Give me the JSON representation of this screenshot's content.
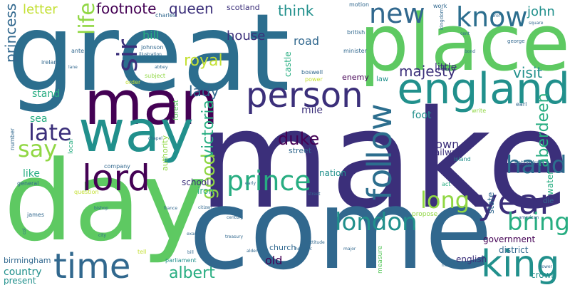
{
  "cloud": {
    "palette": {
      "dark_purple": "#440154",
      "indigo": "#3b2f7a",
      "blue": "#2c6e8e",
      "steel": "#31688e",
      "teal": "#21908c",
      "sea": "#27ad81",
      "green": "#5ec962",
      "light_green": "#90d743",
      "lime": "#c4e034",
      "yellow": "#fde725"
    },
    "words": [
      {
        "text": "great"
      },
      {
        "text": "make"
      },
      {
        "text": "come"
      },
      {
        "text": "day"
      },
      {
        "text": "place"
      },
      {
        "text": "man"
      },
      {
        "text": "way"
      },
      {
        "text": "england"
      },
      {
        "text": "person"
      },
      {
        "text": "lord"
      },
      {
        "text": "time"
      },
      {
        "text": "king"
      },
      {
        "text": "year"
      },
      {
        "text": "know"
      },
      {
        "text": "new"
      },
      {
        "text": "prince"
      },
      {
        "text": "london"
      },
      {
        "text": "follow"
      },
      {
        "text": "life"
      },
      {
        "text": "sir"
      },
      {
        "text": "late"
      },
      {
        "text": "say"
      },
      {
        "text": "hand"
      },
      {
        "text": "long"
      },
      {
        "text": "bring"
      },
      {
        "text": "good"
      },
      {
        "text": "duke"
      },
      {
        "text": "victoria"
      },
      {
        "text": "albert"
      },
      {
        "text": "aberdeen"
      },
      {
        "text": "royal"
      },
      {
        "text": "majesty"
      },
      {
        "text": "visit"
      },
      {
        "text": "lady"
      },
      {
        "text": "princess"
      },
      {
        "text": "footnote"
      },
      {
        "text": "queen"
      },
      {
        "text": "think"
      },
      {
        "text": "john"
      },
      {
        "text": "house"
      },
      {
        "text": "letter"
      },
      {
        "text": "hill"
      },
      {
        "text": "road"
      },
      {
        "text": "scotland"
      },
      {
        "text": "castle"
      },
      {
        "text": "little"
      },
      {
        "text": "town"
      },
      {
        "text": "country"
      },
      {
        "text": "old"
      },
      {
        "text": "church"
      },
      {
        "text": "foot"
      },
      {
        "text": "stand"
      },
      {
        "text": "sea"
      },
      {
        "text": "like"
      },
      {
        "text": "mile"
      },
      {
        "text": "enemy"
      },
      {
        "text": "state"
      },
      {
        "text": "water"
      },
      {
        "text": "government"
      },
      {
        "text": "english"
      },
      {
        "text": "birmingham"
      },
      {
        "text": "present"
      },
      {
        "text": "school"
      },
      {
        "text": "iron"
      },
      {
        "text": "railway"
      },
      {
        "text": "nation"
      },
      {
        "text": "district"
      },
      {
        "text": "crown"
      },
      {
        "text": "authority"
      },
      {
        "text": "company"
      },
      {
        "text": "street"
      },
      {
        "text": "parliament"
      },
      {
        "text": "forest"
      },
      {
        "text": "minister"
      },
      {
        "text": "british"
      },
      {
        "text": "ireland"
      },
      {
        "text": "law"
      },
      {
        "text": "power"
      },
      {
        "text": "order"
      },
      {
        "text": "subject"
      },
      {
        "text": "number"
      },
      {
        "text": "local"
      },
      {
        "text": "general"
      },
      {
        "text": "question"
      },
      {
        "text": "die"
      },
      {
        "text": "act"
      },
      {
        "text": "earl"
      },
      {
        "text": "island"
      },
      {
        "text": "propose"
      },
      {
        "text": "boswell"
      },
      {
        "text": "work"
      },
      {
        "text": "kingdom"
      },
      {
        "text": "motion"
      },
      {
        "text": "johnson"
      },
      {
        "text": "charles"
      },
      {
        "text": "james"
      },
      {
        "text": "write"
      },
      {
        "text": "tell"
      },
      {
        "text": "cathedral"
      },
      {
        "text": "measure"
      },
      {
        "text": "ante"
      },
      {
        "text": "illustration"
      },
      {
        "text": "abbey"
      },
      {
        "text": "chapel"
      },
      {
        "text": "george"
      },
      {
        "text": "alderman"
      },
      {
        "text": "france"
      },
      {
        "text": "bill"
      },
      {
        "text": "city"
      },
      {
        "text": "bishop"
      },
      {
        "text": "century"
      },
      {
        "text": "heraldic"
      },
      {
        "text": "marriage"
      },
      {
        "text": "american"
      },
      {
        "text": "street"
      },
      {
        "text": "tower"
      },
      {
        "text": "major"
      },
      {
        "text": "example"
      },
      {
        "text": "citizen"
      },
      {
        "text": "attitude"
      },
      {
        "text": "early"
      },
      {
        "text": "treasury"
      },
      {
        "text": "col"
      },
      {
        "text": "lane"
      },
      {
        "text": "cent"
      },
      {
        "text": "bond"
      },
      {
        "text": "prof"
      },
      {
        "text": "square"
      }
    ]
  }
}
